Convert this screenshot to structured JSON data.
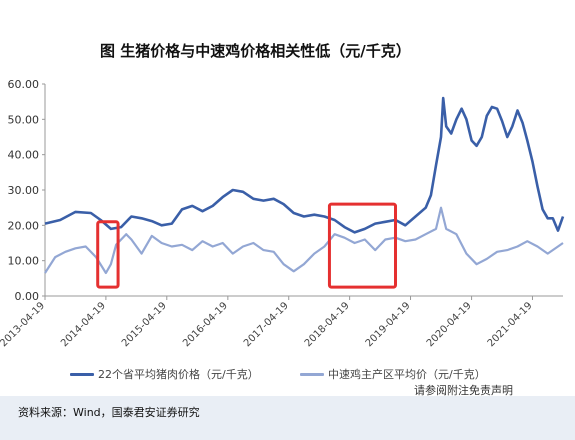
{
  "title": "图 生猪价格与中速鸡价格相关性低（元/千克）",
  "source": "资料来源：Wind，国泰君安证券研究",
  "disclaimer": "请参阅附注免责声明",
  "colors": {
    "pork": "#3a5fa8",
    "chicken": "#93a7d4",
    "highlight": "#e53030",
    "axis": "#999999"
  },
  "chart_data": {
    "type": "line",
    "title": "图 生猪价格与中速鸡价格相关性低（元/千克）",
    "ylim": [
      0,
      60
    ],
    "yticks": [
      "0.00",
      "10.00",
      "20.00",
      "30.00",
      "40.00",
      "50.00",
      "60.00"
    ],
    "xlim": [
      "2013-04-19",
      "2021-10-19"
    ],
    "xticks": [
      "2013-04-19",
      "2014-04-19",
      "2015-04-19",
      "2016-04-19",
      "2017-04-19",
      "2018-04-19",
      "2019-04-19",
      "2020-04-19",
      "2021-04-19"
    ],
    "grid": false,
    "legend": "bottom",
    "series": [
      {
        "name": "22个省平均猪肉价格（元/千克）",
        "points": [
          [
            "2013-04-19",
            20.5
          ],
          [
            "2013-07-19",
            21.5
          ],
          [
            "2013-10-19",
            23.8
          ],
          [
            "2014-01-19",
            23.5
          ],
          [
            "2014-03-19",
            21.5
          ],
          [
            "2014-05-19",
            19.0
          ],
          [
            "2014-07-19",
            19.5
          ],
          [
            "2014-09-19",
            22.5
          ],
          [
            "2014-11-19",
            22.0
          ],
          [
            "2015-01-19",
            21.2
          ],
          [
            "2015-03-19",
            20.0
          ],
          [
            "2015-05-19",
            20.5
          ],
          [
            "2015-07-19",
            24.5
          ],
          [
            "2015-09-19",
            25.5
          ],
          [
            "2015-11-19",
            24.0
          ],
          [
            "2016-01-19",
            25.5
          ],
          [
            "2016-03-19",
            28.0
          ],
          [
            "2016-05-19",
            30.0
          ],
          [
            "2016-07-19",
            29.5
          ],
          [
            "2016-09-19",
            27.5
          ],
          [
            "2016-11-19",
            27.0
          ],
          [
            "2017-01-19",
            27.5
          ],
          [
            "2017-03-19",
            26.0
          ],
          [
            "2017-05-19",
            23.5
          ],
          [
            "2017-07-19",
            22.5
          ],
          [
            "2017-09-19",
            23.0
          ],
          [
            "2017-11-19",
            22.5
          ],
          [
            "2018-01-19",
            21.5
          ],
          [
            "2018-03-19",
            19.5
          ],
          [
            "2018-05-19",
            18.0
          ],
          [
            "2018-07-19",
            19.0
          ],
          [
            "2018-09-19",
            20.5
          ],
          [
            "2018-11-19",
            21.0
          ],
          [
            "2019-01-19",
            21.5
          ],
          [
            "2019-03-19",
            20.0
          ],
          [
            "2019-05-19",
            22.5
          ],
          [
            "2019-07-19",
            25.0
          ],
          [
            "2019-08-19",
            28.5
          ],
          [
            "2019-09-19",
            37.0
          ],
          [
            "2019-10-19",
            45.0
          ],
          [
            "2019-11-01",
            56.0
          ],
          [
            "2019-11-19",
            48.0
          ],
          [
            "2019-12-19",
            46.0
          ],
          [
            "2020-01-19",
            50.0
          ],
          [
            "2020-02-19",
            53.0
          ],
          [
            "2020-03-19",
            50.0
          ],
          [
            "2020-04-19",
            44.0
          ],
          [
            "2020-05-19",
            42.5
          ],
          [
            "2020-06-19",
            45.0
          ],
          [
            "2020-07-19",
            51.0
          ],
          [
            "2020-08-19",
            53.5
          ],
          [
            "2020-09-19",
            53.0
          ],
          [
            "2020-10-19",
            49.5
          ],
          [
            "2020-11-19",
            45.0
          ],
          [
            "2020-12-19",
            48.0
          ],
          [
            "2021-01-19",
            52.5
          ],
          [
            "2021-02-19",
            49.0
          ],
          [
            "2021-03-19",
            44.0
          ],
          [
            "2021-04-19",
            38.0
          ],
          [
            "2021-05-19",
            31.0
          ],
          [
            "2021-06-19",
            24.5
          ],
          [
            "2021-07-19",
            22.0
          ],
          [
            "2021-08-19",
            22.0
          ],
          [
            "2021-09-19",
            18.5
          ],
          [
            "2021-10-19",
            22.5
          ]
        ]
      },
      {
        "name": "中速鸡主产区平均价（元/千克）",
        "points": [
          [
            "2013-04-19",
            6.5
          ],
          [
            "2013-06-19",
            11.0
          ],
          [
            "2013-08-19",
            12.5
          ],
          [
            "2013-10-19",
            13.5
          ],
          [
            "2013-12-19",
            14.0
          ],
          [
            "2014-02-19",
            11.0
          ],
          [
            "2014-04-19",
            6.5
          ],
          [
            "2014-05-19",
            9.0
          ],
          [
            "2014-06-19",
            14.5
          ],
          [
            "2014-08-19",
            17.5
          ],
          [
            "2014-09-19",
            16.0
          ],
          [
            "2014-11-19",
            12.0
          ],
          [
            "2015-01-19",
            17.0
          ],
          [
            "2015-03-19",
            15.0
          ],
          [
            "2015-05-19",
            14.0
          ],
          [
            "2015-07-19",
            14.5
          ],
          [
            "2015-09-19",
            13.0
          ],
          [
            "2015-11-19",
            15.5
          ],
          [
            "2016-01-19",
            14.0
          ],
          [
            "2016-03-19",
            15.0
          ],
          [
            "2016-05-19",
            12.0
          ],
          [
            "2016-07-19",
            14.0
          ],
          [
            "2016-09-19",
            15.0
          ],
          [
            "2016-11-19",
            13.0
          ],
          [
            "2017-01-19",
            12.5
          ],
          [
            "2017-03-19",
            9.0
          ],
          [
            "2017-05-19",
            7.0
          ],
          [
            "2017-07-19",
            9.0
          ],
          [
            "2017-09-19",
            12.0
          ],
          [
            "2017-11-19",
            14.0
          ],
          [
            "2018-01-19",
            17.5
          ],
          [
            "2018-03-19",
            16.5
          ],
          [
            "2018-05-19",
            15.0
          ],
          [
            "2018-07-19",
            16.0
          ],
          [
            "2018-09-19",
            13.0
          ],
          [
            "2018-11-19",
            16.0
          ],
          [
            "2019-01-19",
            16.5
          ],
          [
            "2019-03-19",
            15.5
          ],
          [
            "2019-05-19",
            16.0
          ],
          [
            "2019-07-19",
            17.5
          ],
          [
            "2019-09-19",
            19.0
          ],
          [
            "2019-10-19",
            25.0
          ],
          [
            "2019-11-19",
            19.0
          ],
          [
            "2020-01-19",
            17.5
          ],
          [
            "2020-03-19",
            12.0
          ],
          [
            "2020-05-19",
            9.0
          ],
          [
            "2020-07-19",
            10.5
          ],
          [
            "2020-09-19",
            12.5
          ],
          [
            "2020-11-19",
            13.0
          ],
          [
            "2021-01-19",
            14.0
          ],
          [
            "2021-03-19",
            15.5
          ],
          [
            "2021-05-19",
            14.0
          ],
          [
            "2021-07-19",
            12.0
          ],
          [
            "2021-09-19",
            14.0
          ],
          [
            "2021-10-19",
            15.0
          ]
        ]
      }
    ],
    "annotations": [
      {
        "type": "rect",
        "x": [
          "2014-03-01",
          "2014-07-01"
        ],
        "y": [
          2.5,
          21
        ]
      },
      {
        "type": "rect",
        "x": [
          "2017-12-19",
          "2019-01-19"
        ],
        "y": [
          2.5,
          26
        ]
      }
    ]
  }
}
